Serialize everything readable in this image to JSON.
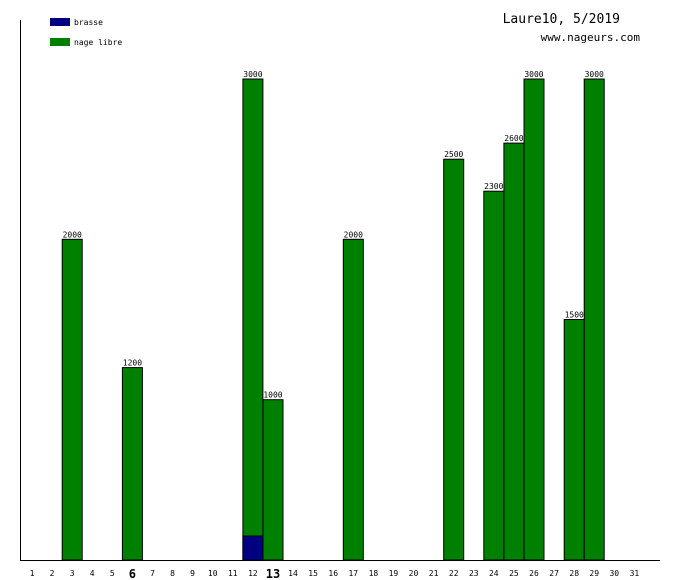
{
  "chart_data": {
    "type": "bar",
    "title": "Laure10, 5/2019",
    "subtitle": "www.nageurs.com",
    "xlabel": "",
    "ylabel": "",
    "ylim": [
      0,
      3000
    ],
    "grid": false,
    "legend_position": "top-left",
    "categories": [
      "1",
      "2",
      "3",
      "4",
      "5",
      "6",
      "7",
      "8",
      "9",
      "10",
      "11",
      "12",
      "13",
      "14",
      "15",
      "16",
      "17",
      "18",
      "19",
      "20",
      "21",
      "22",
      "23",
      "24",
      "25",
      "26",
      "27",
      "28",
      "29",
      "30",
      "31"
    ],
    "bold_categories": [
      "6",
      "13"
    ],
    "colors": {
      "brasse": "#000080",
      "nage libre": "#008000"
    },
    "series": [
      {
        "name": "brasse",
        "points": [
          {
            "x": "12",
            "value": 150
          }
        ]
      },
      {
        "name": "nage libre",
        "points": [
          {
            "x": "3",
            "value": 2000
          },
          {
            "x": "6",
            "value": 1200
          },
          {
            "x": "12",
            "value": 3000
          },
          {
            "x": "13",
            "value": 1000
          },
          {
            "x": "17",
            "value": 2000
          },
          {
            "x": "22",
            "value": 2500
          },
          {
            "x": "24",
            "value": 2300
          },
          {
            "x": "25",
            "value": 2600
          },
          {
            "x": "26",
            "value": 3000
          },
          {
            "x": "28",
            "value": 1500
          },
          {
            "x": "29",
            "value": 3000
          }
        ]
      }
    ],
    "bar_labels": [
      {
        "x": "3",
        "label": "2000"
      },
      {
        "x": "6",
        "label": "1200"
      },
      {
        "x": "12",
        "label": "3000"
      },
      {
        "x": "13",
        "label": "1000"
      },
      {
        "x": "17",
        "label": "2000"
      },
      {
        "x": "22",
        "label": "2500"
      },
      {
        "x": "24",
        "label": "2300"
      },
      {
        "x": "25",
        "label": "2600"
      },
      {
        "x": "26",
        "label": "3000"
      },
      {
        "x": "28",
        "label": "1500"
      },
      {
        "x": "29",
        "label": "3000"
      }
    ]
  }
}
